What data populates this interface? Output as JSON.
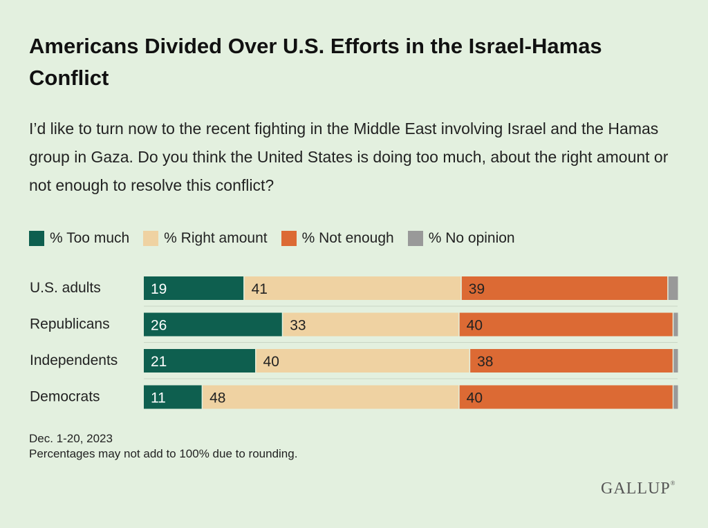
{
  "title": "Americans Divided Over U.S. Efforts in the Israel-Hamas Conflict",
  "subtitle": "I’d like to turn now to the recent fighting in the Middle East involving Israel and the Hamas group in Gaza. Do you think the United States is doing too much, about the right amount or not enough to resolve this conflict?",
  "footnote": {
    "date": "Dec. 1-20, 2023",
    "note": "Percentages may not add to 100% due to rounding."
  },
  "brand": "GALLUP",
  "brand_mark": "®",
  "colors": {
    "too_much": "#0e5f4f",
    "right_amount": "#efd2a2",
    "not_enough": "#dc6a34",
    "no_opinion": "#999999"
  },
  "chart_data": {
    "type": "bar",
    "orientation": "horizontal",
    "stacked": true,
    "title": "Americans Divided Over U.S. Efforts in the Israel-Hamas Conflict",
    "categories": [
      "U.S. adults",
      "Republicans",
      "Independents",
      "Democrats"
    ],
    "xlim": [
      0,
      100
    ],
    "series": [
      {
        "name": "% Too much",
        "values": [
          19,
          26,
          21,
          11
        ],
        "show_labels": true
      },
      {
        "name": "% Right amount",
        "values": [
          41,
          33,
          40,
          48
        ],
        "show_labels": true
      },
      {
        "name": "% Not enough",
        "values": [
          39,
          40,
          38,
          40
        ],
        "show_labels": true
      },
      {
        "name": "% No opinion",
        "values": [
          2,
          1,
          1,
          1
        ],
        "show_labels": false
      }
    ],
    "legend_position": "top-left"
  }
}
